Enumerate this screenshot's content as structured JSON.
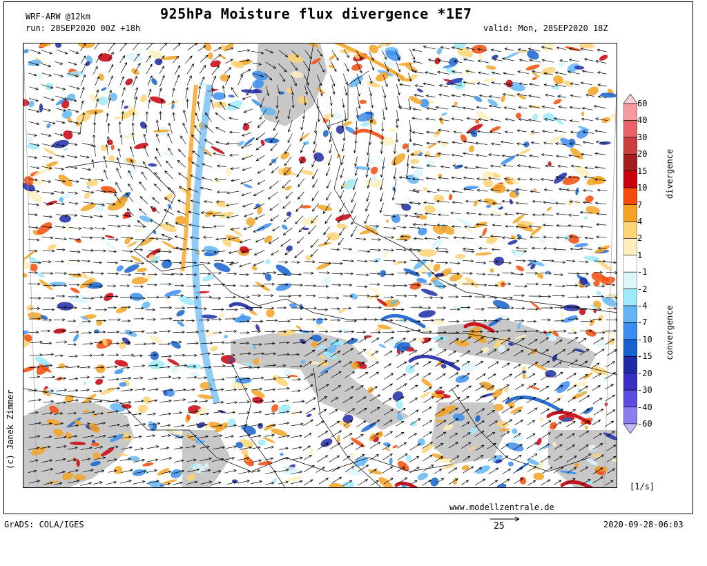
{
  "header": {
    "model": "WRF-ARW @12km",
    "title": "925hPa Moisture flux divergence *1E7",
    "run": "run: 28SEP2020 00Z +18h",
    "valid": "valid: Mon, 28SEP2020 18Z"
  },
  "footer": {
    "credit": "(c) Janek Zimmer",
    "website": "www.modellzentrale.de",
    "software": "GrADS: COLA/IGES",
    "timestamp": "2020-09-28-06:03",
    "vector_scale": "25",
    "unit": "[1/s]"
  },
  "legend": {
    "divergence_label": "divergence",
    "convergence_label": "convergence",
    "levels": [
      "60",
      "40",
      "30",
      "20",
      "15",
      "10",
      "7",
      "4",
      "2",
      "1",
      "-1",
      "-2",
      "-4",
      "-7",
      "-10",
      "-15",
      "-20",
      "-30",
      "-40",
      "-60"
    ],
    "colors": [
      "#f7d0d3",
      "#f49aa0",
      "#e86466",
      "#c9403f",
      "#a51d1d",
      "#c8000c",
      "#f44b0b",
      "#f5a324",
      "#fbd476",
      "#fdf0bd",
      "#ffffff",
      "#ddf6fa",
      "#9eeafa",
      "#63b6f6",
      "#3b8def",
      "#1561cf",
      "#1f2aa6",
      "#3a2ec4",
      "#5b4ce2",
      "#8a7ef0",
      "#c6b8fa"
    ]
  },
  "map": {
    "land_masked_color": "#c8c8c8",
    "border_color": "#000000",
    "arrow_color": "#000000"
  }
}
